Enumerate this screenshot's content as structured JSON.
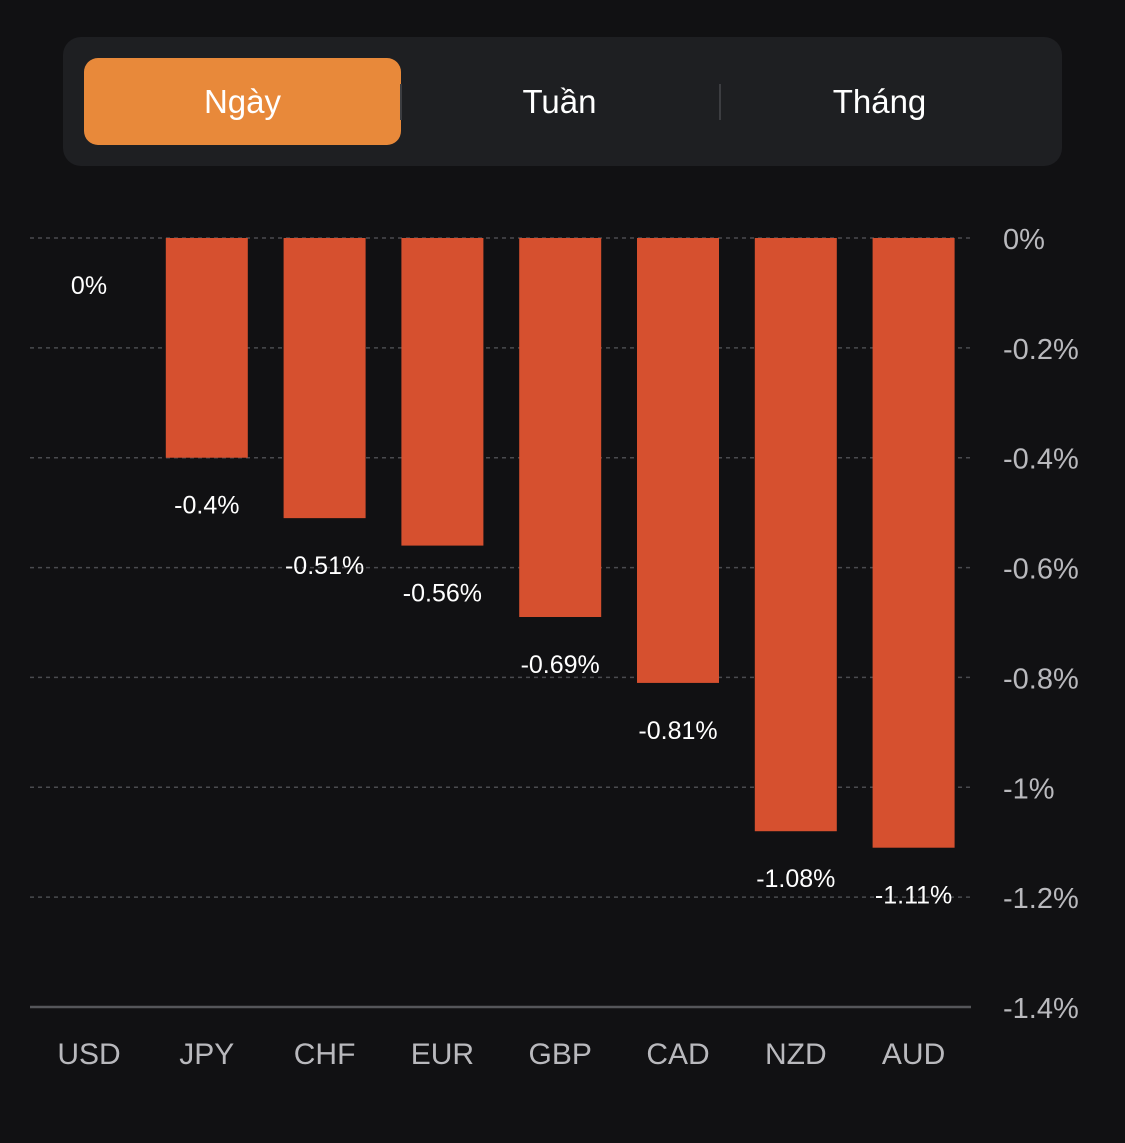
{
  "tabs": [
    {
      "label": "Ngày",
      "active": true
    },
    {
      "label": "Tuần",
      "active": false
    },
    {
      "label": "Tháng",
      "active": false
    }
  ],
  "colors": {
    "accent": "#e8893a",
    "bar": "#d6502f",
    "background": "#111113",
    "panel": "#1e1f22",
    "grid": "#4a4b4f",
    "axis_text": "#b9b9bd",
    "label_text": "#ffffff"
  },
  "chart_data": {
    "type": "bar",
    "categories": [
      "USD",
      "JPY",
      "CHF",
      "EUR",
      "GBP",
      "CAD",
      "NZD",
      "AUD"
    ],
    "values": [
      0,
      -0.4,
      -0.51,
      -0.56,
      -0.69,
      -0.81,
      -1.08,
      -1.11
    ],
    "data_labels": [
      "0%",
      "-0.4%",
      "-0.51%",
      "-0.56%",
      "-0.69%",
      "-0.81%",
      "-1.08%",
      "-1.11%"
    ],
    "y_ticks": [
      0,
      -0.2,
      -0.4,
      -0.6,
      -0.8,
      -1,
      -1.2,
      -1.4
    ],
    "y_tick_labels": [
      "0%",
      "-0.2%",
      "-0.4%",
      "-0.6%",
      "-0.8%",
      "-1%",
      "-1.2%",
      "-1.4%"
    ],
    "ylim": [
      -1.4,
      0
    ],
    "y_axis_position": "right",
    "grid": true,
    "legend": "none"
  }
}
